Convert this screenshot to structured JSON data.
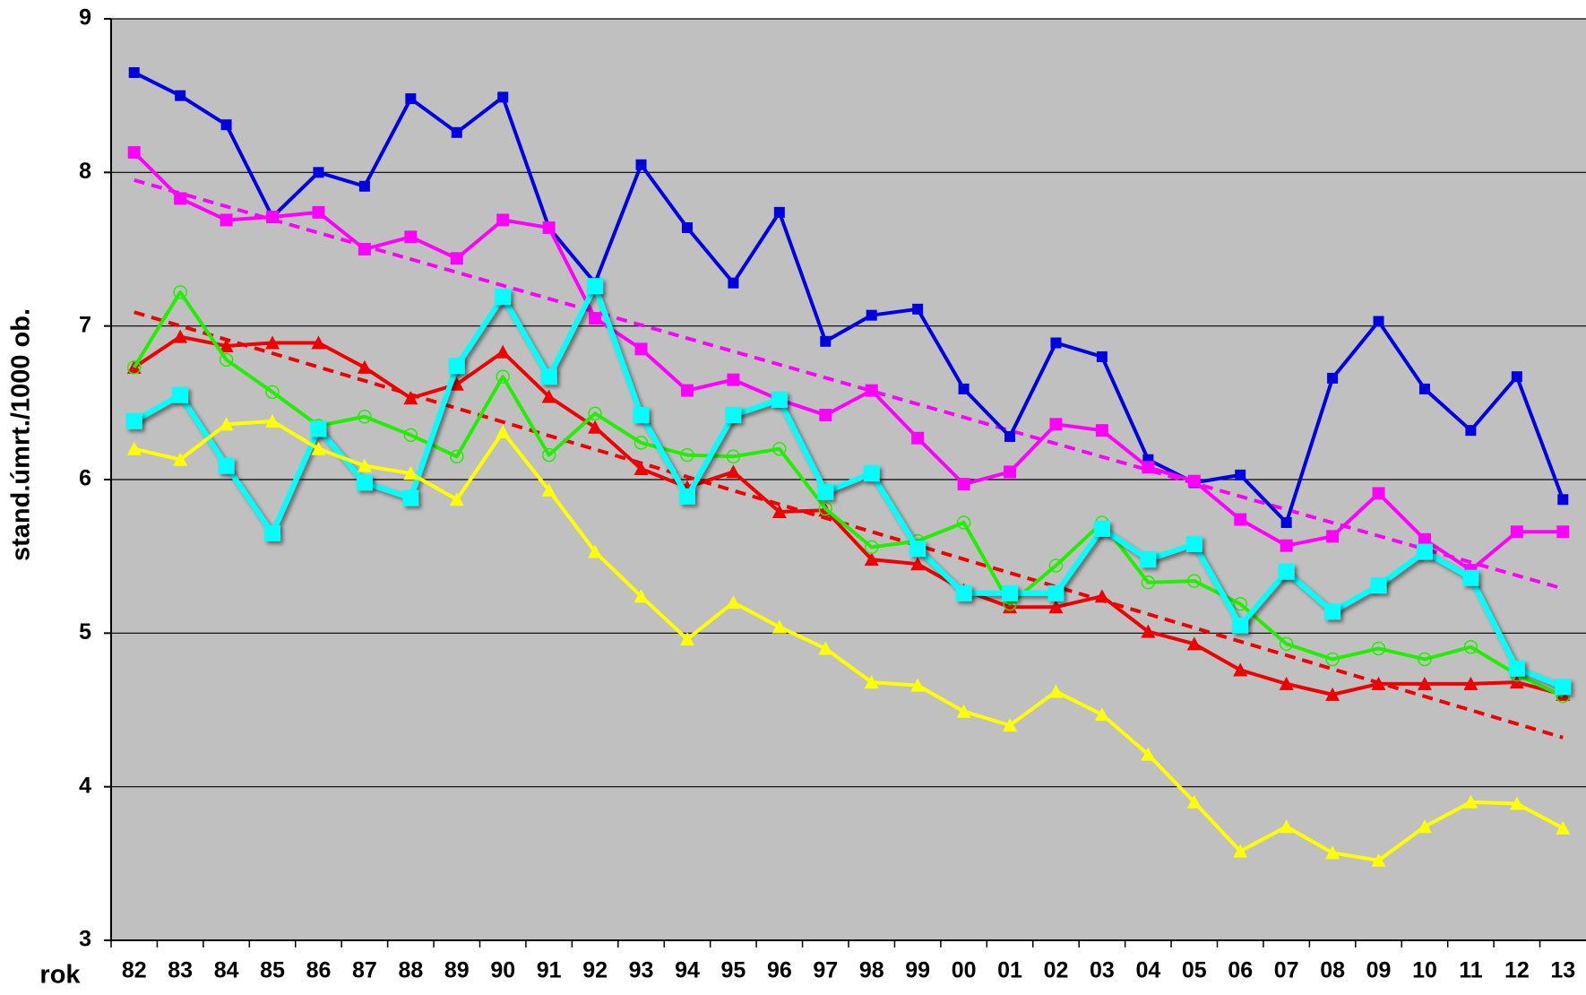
{
  "chart_data": {
    "type": "line",
    "y_label": "stand.úmrt./1000 ob.",
    "x_label": "rok",
    "categories": [
      "82",
      "83",
      "84",
      "85",
      "86",
      "87",
      "88",
      "89",
      "90",
      "91",
      "92",
      "93",
      "94",
      "95",
      "96",
      "97",
      "98",
      "99",
      "00",
      "01",
      "02",
      "03",
      "04",
      "05",
      "06",
      "07",
      "08",
      "09",
      "10",
      "11",
      "12",
      "13"
    ],
    "ylim": [
      3,
      9
    ],
    "yticks": [
      3,
      4,
      5,
      6,
      7,
      8,
      9
    ],
    "grid": true,
    "background": "#c0c0c0",
    "series": [
      {
        "color": "#0000e0",
        "marker": "square-small",
        "values": [
          8.65,
          8.5,
          8.31,
          7.71,
          8.0,
          7.91,
          8.48,
          8.26,
          8.49,
          7.64,
          7.28,
          8.05,
          7.64,
          7.28,
          7.74,
          6.9,
          7.07,
          7.11,
          6.59,
          6.28,
          6.89,
          6.8,
          6.13,
          5.98,
          6.03,
          5.72,
          6.66,
          7.03,
          6.59,
          6.32,
          6.67,
          5.87
        ]
      },
      {
        "color": "#ff00ff",
        "marker": "square",
        "values": [
          8.13,
          7.83,
          7.69,
          7.71,
          7.74,
          7.5,
          7.58,
          7.44,
          7.69,
          7.64,
          7.05,
          6.85,
          6.58,
          6.65,
          6.52,
          6.42,
          6.58,
          6.27,
          5.97,
          6.05,
          6.36,
          6.32,
          6.08,
          5.99,
          5.74,
          5.57,
          5.63,
          5.91,
          5.61,
          5.41,
          5.66,
          5.66
        ]
      },
      {
        "color": "#ee0000",
        "marker": "triangle",
        "values": [
          6.73,
          6.93,
          6.87,
          6.89,
          6.89,
          6.73,
          6.53,
          6.62,
          6.83,
          6.54,
          6.34,
          6.07,
          5.95,
          6.05,
          5.79,
          5.8,
          5.48,
          5.45,
          5.28,
          5.17,
          5.17,
          5.24,
          5.01,
          4.93,
          4.76,
          4.67,
          4.6,
          4.67,
          4.67,
          4.67,
          4.68,
          4.6
        ]
      },
      {
        "color": "#22ee00",
        "marker": "circle-open",
        "values": [
          6.73,
          7.22,
          6.78,
          6.57,
          6.35,
          6.41,
          6.29,
          6.15,
          6.67,
          6.16,
          6.43,
          6.24,
          6.16,
          6.15,
          6.2,
          5.81,
          5.56,
          5.6,
          5.72,
          5.19,
          5.44,
          5.72,
          5.33,
          5.34,
          5.19,
          4.93,
          4.83,
          4.9,
          4.83,
          4.91,
          4.73,
          4.59
        ]
      },
      {
        "color": "#00ffff",
        "marker": "square-large",
        "values": [
          6.38,
          6.55,
          6.09,
          5.65,
          6.33,
          5.98,
          5.88,
          6.74,
          7.19,
          6.67,
          7.26,
          6.42,
          5.89,
          6.42,
          6.52,
          5.92,
          6.04,
          5.55,
          5.26,
          5.26,
          5.26,
          5.68,
          5.48,
          5.58,
          5.05,
          5.4,
          5.14,
          5.31,
          5.53,
          5.36,
          4.77,
          4.65
        ]
      },
      {
        "color": "#ffff00",
        "marker": "triangle",
        "values": [
          6.2,
          6.13,
          6.36,
          6.38,
          6.2,
          6.09,
          6.04,
          5.87,
          6.31,
          5.93,
          5.53,
          5.24,
          4.96,
          5.2,
          5.04,
          4.9,
          4.68,
          4.66,
          4.49,
          4.4,
          4.62,
          4.47,
          4.21,
          3.9,
          3.58,
          3.74,
          3.57,
          3.52,
          3.74,
          3.9,
          3.89,
          3.73
        ]
      }
    ],
    "trendlines": [
      {
        "color": "#ff00ff",
        "values": [
          7.95,
          5.29
        ]
      },
      {
        "color": "#ee0000",
        "values": [
          7.09,
          4.32
        ]
      }
    ]
  }
}
